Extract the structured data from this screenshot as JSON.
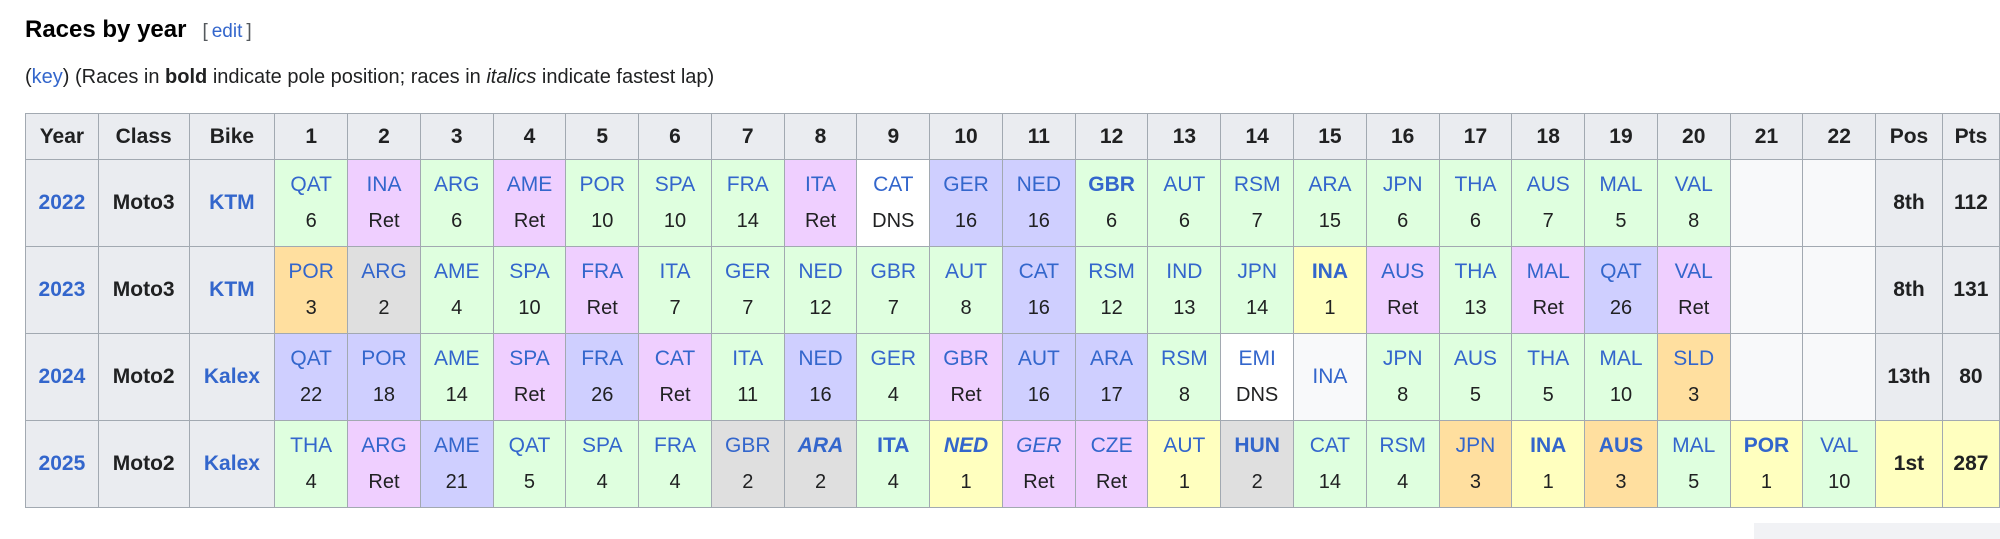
{
  "heading": {
    "title": "Races by year",
    "edit_open": "[",
    "edit_label": "edit",
    "edit_close": "]"
  },
  "key_line": {
    "open_paren": "(",
    "key_link": "key",
    "after_key": ") (Races in ",
    "bold_word": "bold",
    "middle": " indicate pole position; races in ",
    "italic_word": "italics",
    "tail": " indicate fastest lap)"
  },
  "colors": {
    "win": "#FFFFBF",
    "second": "#DFDFDF",
    "third": "#FFDF9F",
    "points": "#DFFFDF",
    "nonpoints": "#CFCFFF",
    "retired": "#EFCFFF",
    "dns": "#FFFFFF",
    "blank": "#F8F9FA",
    "headbg": "#EAECF0",
    "border": "#A2A9B1",
    "link": "#3366CC"
  },
  "table": {
    "headers": [
      "Year",
      "Class",
      "Bike",
      "1",
      "2",
      "3",
      "4",
      "5",
      "6",
      "7",
      "8",
      "9",
      "10",
      "11",
      "12",
      "13",
      "14",
      "15",
      "16",
      "17",
      "18",
      "19",
      "20",
      "21",
      "22",
      "Pos",
      "Pts"
    ],
    "rows": [
      {
        "year": "2022",
        "class": "Moto3",
        "bike": "KTM",
        "pos": "8th",
        "pts": "112",
        "pos_highlight": false,
        "races": [
          {
            "c": "QAT",
            "r": "6",
            "s": "points"
          },
          {
            "c": "INA",
            "r": "Ret",
            "s": "retired"
          },
          {
            "c": "ARG",
            "r": "6",
            "s": "points"
          },
          {
            "c": "AME",
            "r": "Ret",
            "s": "retired"
          },
          {
            "c": "POR",
            "r": "10",
            "s": "points"
          },
          {
            "c": "SPA",
            "r": "10",
            "s": "points"
          },
          {
            "c": "FRA",
            "r": "14",
            "s": "points"
          },
          {
            "c": "ITA",
            "r": "Ret",
            "s": "retired"
          },
          {
            "c": "CAT",
            "r": "DNS",
            "s": "dns"
          },
          {
            "c": "GER",
            "r": "16",
            "s": "nonpoints"
          },
          {
            "c": "NED",
            "r": "16",
            "s": "nonpoints"
          },
          {
            "c": "GBR",
            "r": "6",
            "s": "points",
            "b": true
          },
          {
            "c": "AUT",
            "r": "6",
            "s": "points"
          },
          {
            "c": "RSM",
            "r": "7",
            "s": "points"
          },
          {
            "c": "ARA",
            "r": "15",
            "s": "points"
          },
          {
            "c": "JPN",
            "r": "6",
            "s": "points"
          },
          {
            "c": "THA",
            "r": "6",
            "s": "points"
          },
          {
            "c": "AUS",
            "r": "7",
            "s": "points"
          },
          {
            "c": "MAL",
            "r": "5",
            "s": "points"
          },
          {
            "c": "VAL",
            "r": "8",
            "s": "points"
          },
          {},
          {}
        ]
      },
      {
        "year": "2023",
        "class": "Moto3",
        "bike": "KTM",
        "pos": "8th",
        "pts": "131",
        "pos_highlight": false,
        "races": [
          {
            "c": "POR",
            "r": "3",
            "s": "third"
          },
          {
            "c": "ARG",
            "r": "2",
            "s": "second"
          },
          {
            "c": "AME",
            "r": "4",
            "s": "points"
          },
          {
            "c": "SPA",
            "r": "10",
            "s": "points"
          },
          {
            "c": "FRA",
            "r": "Ret",
            "s": "retired"
          },
          {
            "c": "ITA",
            "r": "7",
            "s": "points"
          },
          {
            "c": "GER",
            "r": "7",
            "s": "points"
          },
          {
            "c": "NED",
            "r": "12",
            "s": "points"
          },
          {
            "c": "GBR",
            "r": "7",
            "s": "points"
          },
          {
            "c": "AUT",
            "r": "8",
            "s": "points"
          },
          {
            "c": "CAT",
            "r": "16",
            "s": "nonpoints"
          },
          {
            "c": "RSM",
            "r": "12",
            "s": "points"
          },
          {
            "c": "IND",
            "r": "13",
            "s": "points"
          },
          {
            "c": "JPN",
            "r": "14",
            "s": "points"
          },
          {
            "c": "INA",
            "r": "1",
            "s": "win",
            "b": true
          },
          {
            "c": "AUS",
            "r": "Ret",
            "s": "retired"
          },
          {
            "c": "THA",
            "r": "13",
            "s": "points"
          },
          {
            "c": "MAL",
            "r": "Ret",
            "s": "retired"
          },
          {
            "c": "QAT",
            "r": "26",
            "s": "nonpoints"
          },
          {
            "c": "VAL",
            "r": "Ret",
            "s": "retired"
          },
          {},
          {}
        ]
      },
      {
        "year": "2024",
        "class": "Moto2",
        "bike": "Kalex",
        "pos": "13th",
        "pts": "80",
        "pos_highlight": false,
        "races": [
          {
            "c": "QAT",
            "r": "22",
            "s": "nonpoints"
          },
          {
            "c": "POR",
            "r": "18",
            "s": "nonpoints"
          },
          {
            "c": "AME",
            "r": "14",
            "s": "points"
          },
          {
            "c": "SPA",
            "r": "Ret",
            "s": "retired"
          },
          {
            "c": "FRA",
            "r": "26",
            "s": "nonpoints"
          },
          {
            "c": "CAT",
            "r": "Ret",
            "s": "retired"
          },
          {
            "c": "ITA",
            "r": "11",
            "s": "points"
          },
          {
            "c": "NED",
            "r": "16",
            "s": "nonpoints"
          },
          {
            "c": "GER",
            "r": "4",
            "s": "points"
          },
          {
            "c": "GBR",
            "r": "Ret",
            "s": "retired"
          },
          {
            "c": "AUT",
            "r": "16",
            "s": "nonpoints"
          },
          {
            "c": "ARA",
            "r": "17",
            "s": "nonpoints"
          },
          {
            "c": "RSM",
            "r": "8",
            "s": "points"
          },
          {
            "c": "EMI",
            "r": "DNS",
            "s": "dns"
          },
          {
            "c": "INA",
            "r": "",
            "s": "blank"
          },
          {
            "c": "JPN",
            "r": "8",
            "s": "points"
          },
          {
            "c": "AUS",
            "r": "5",
            "s": "points"
          },
          {
            "c": "THA",
            "r": "5",
            "s": "points"
          },
          {
            "c": "MAL",
            "r": "10",
            "s": "points"
          },
          {
            "c": "SLD",
            "r": "3",
            "s": "third"
          },
          {},
          {}
        ]
      },
      {
        "year": "2025",
        "class": "Moto2",
        "bike": "Kalex",
        "pos": "1st",
        "pts": "287",
        "pos_highlight": true,
        "races": [
          {
            "c": "THA",
            "r": "4",
            "s": "points"
          },
          {
            "c": "ARG",
            "r": "Ret",
            "s": "retired"
          },
          {
            "c": "AME",
            "r": "21",
            "s": "nonpoints"
          },
          {
            "c": "QAT",
            "r": "5",
            "s": "points"
          },
          {
            "c": "SPA",
            "r": "4",
            "s": "points"
          },
          {
            "c": "FRA",
            "r": "4",
            "s": "points"
          },
          {
            "c": "GBR",
            "r": "2",
            "s": "second"
          },
          {
            "c": "ARA",
            "r": "2",
            "s": "second",
            "b": true,
            "i": true
          },
          {
            "c": "ITA",
            "r": "4",
            "s": "points",
            "b": true
          },
          {
            "c": "NED",
            "r": "1",
            "s": "win",
            "b": true,
            "i": true
          },
          {
            "c": "GER",
            "r": "Ret",
            "s": "retired",
            "i": true
          },
          {
            "c": "CZE",
            "r": "Ret",
            "s": "retired"
          },
          {
            "c": "AUT",
            "r": "1",
            "s": "win"
          },
          {
            "c": "HUN",
            "r": "2",
            "s": "second",
            "b": true
          },
          {
            "c": "CAT",
            "r": "14",
            "s": "points"
          },
          {
            "c": "RSM",
            "r": "4",
            "s": "points"
          },
          {
            "c": "JPN",
            "r": "3",
            "s": "third"
          },
          {
            "c": "INA",
            "r": "1",
            "s": "win",
            "b": true
          },
          {
            "c": "AUS",
            "r": "3",
            "s": "third",
            "b": true
          },
          {
            "c": "MAL",
            "r": "5",
            "s": "points"
          },
          {
            "c": "POR",
            "r": "1",
            "s": "win",
            "b": true
          },
          {
            "c": "VAL",
            "r": "10",
            "s": "points"
          }
        ]
      }
    ]
  }
}
